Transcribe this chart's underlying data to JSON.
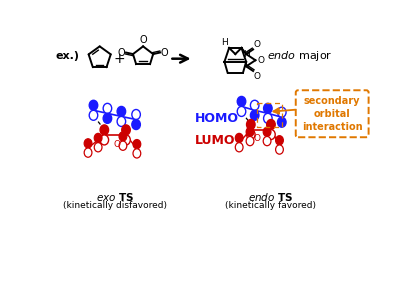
{
  "bg_color": "#ffffff",
  "blue": "#1a1aff",
  "blue_dark": "#0000cc",
  "red": "#cc0000",
  "orange": "#e07800",
  "black": "#000000",
  "ex_label": "ex.)",
  "homo_label": "HOMO",
  "lumo_label": "LUMO",
  "exo_line1": "exo TS",
  "exo_line2": "(kinetically disfavored)",
  "endo_line1": "endo TS",
  "endo_line2": "(kinetically favored)",
  "endo_major": "endo major",
  "secondary_label": "secondary\norbital\ninteraction"
}
